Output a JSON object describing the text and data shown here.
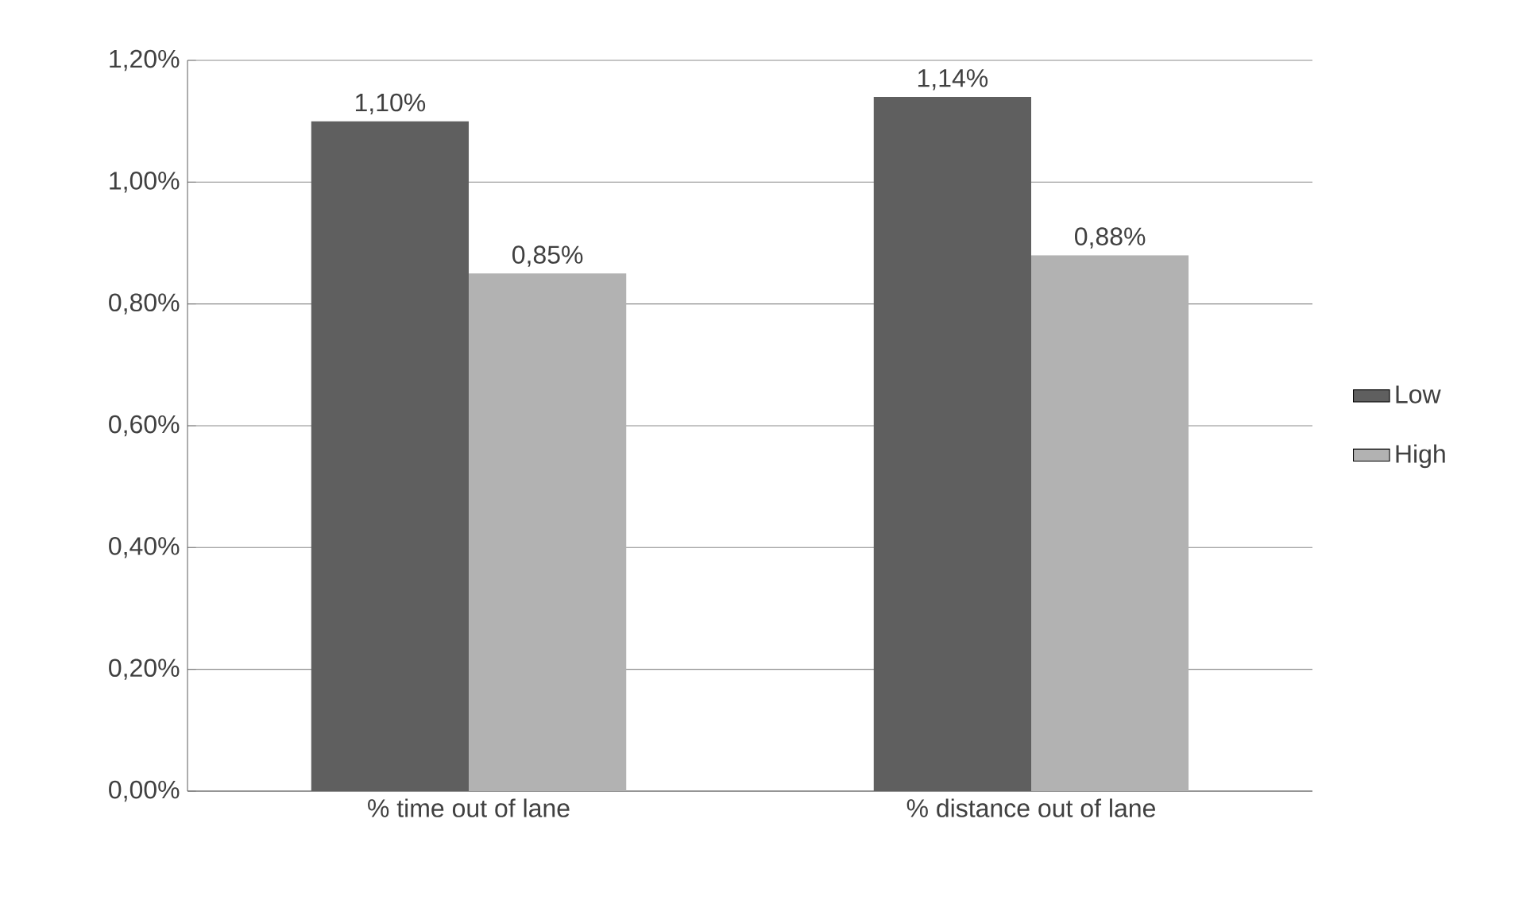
{
  "chart_data": {
    "type": "bar",
    "categories": [
      "% time out of lane",
      "% distance out of lane"
    ],
    "series": [
      {
        "name": "Low",
        "color": "#5f5f5f",
        "values": [
          1.1,
          1.14
        ],
        "value_labels": [
          "1,10%",
          "1,14%"
        ]
      },
      {
        "name": "High",
        "color": "#b2b2b2",
        "values": [
          0.85,
          0.88
        ],
        "value_labels": [
          "0,85%",
          "0,88%"
        ]
      }
    ],
    "ylim": [
      0,
      1.2
    ],
    "yticks": [
      {
        "value": 0,
        "label": "0,00%"
      },
      {
        "value": 0.2,
        "label": "0,20%"
      },
      {
        "value": 0.4,
        "label": "0,40%"
      },
      {
        "value": 0.6,
        "label": "0,60%"
      },
      {
        "value": 0.8,
        "label": "0,80%"
      },
      {
        "value": 1.0,
        "label": "1,00%"
      },
      {
        "value": 1.2,
        "label": "1,20%"
      }
    ],
    "grid": "y",
    "legend": "right"
  }
}
